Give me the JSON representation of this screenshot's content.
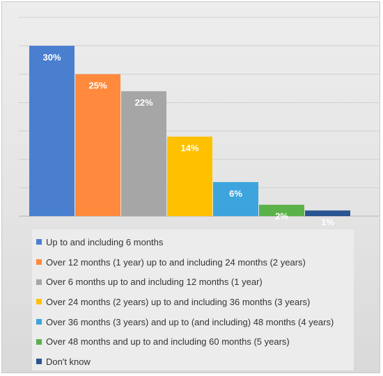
{
  "chart_data": {
    "type": "bar",
    "categories": [
      "Up to and including 6 months",
      "Over 12 months (1 year) up to and including 24 months (2 years)",
      "Over 6 months up to and including 12 months (1 year)",
      "Over 24 months (2 years) up to and including 36 months (3 years)",
      "Over 36 months (3 years) and up to (and including) 48 months (4 years)",
      "Over 48 months and up to and including 60 months (5 years)",
      "Don't know"
    ],
    "values": [
      30,
      25,
      22,
      14,
      6,
      2,
      1
    ],
    "data_labels": [
      "30%",
      "25%",
      "22%",
      "14%",
      "6%",
      "2%",
      "1%"
    ],
    "colors": [
      "#4a7fd0",
      "#ff8a3d",
      "#a6a6a6",
      "#ffc000",
      "#3ea4dd",
      "#5bb14a",
      "#2a5590"
    ],
    "ylim": [
      0,
      35
    ],
    "grid": true,
    "legend_position": "bottom"
  }
}
